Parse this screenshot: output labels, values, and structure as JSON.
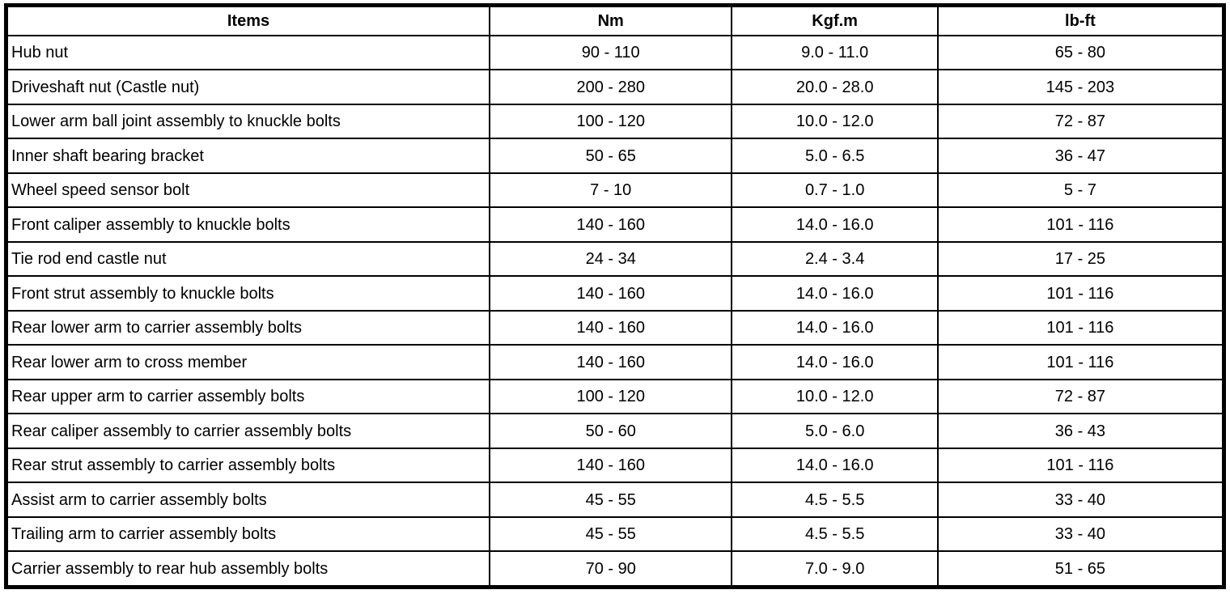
{
  "table": {
    "headers": [
      "Items",
      "Nm",
      "Kgf.m",
      "lb-ft"
    ],
    "rows": [
      [
        "Hub nut",
        "90 - 110",
        "9.0 - 11.0",
        "65 - 80"
      ],
      [
        "Driveshaft nut (Castle nut)",
        "200 - 280",
        "20.0 - 28.0",
        "145 - 203"
      ],
      [
        "Lower arm ball joint assembly to knuckle bolts",
        "100 - 120",
        "10.0 - 12.0",
        "72 - 87"
      ],
      [
        "Inner shaft bearing bracket",
        "50 - 65",
        "5.0 - 6.5",
        "36 - 47"
      ],
      [
        "Wheel speed sensor bolt",
        "7 - 10",
        "0.7 - 1.0",
        "5 - 7"
      ],
      [
        "Front caliper assembly to knuckle bolts",
        "140 - 160",
        "14.0 - 16.0",
        "101 - 116"
      ],
      [
        "Tie rod end castle nut",
        "24 - 34",
        "2.4 - 3.4",
        "17 - 25"
      ],
      [
        "Front strut assembly to knuckle bolts",
        "140 - 160",
        "14.0 - 16.0",
        "101 - 116"
      ],
      [
        "Rear lower arm to carrier assembly bolts",
        "140 - 160",
        "14.0 - 16.0",
        "101 - 116"
      ],
      [
        "Rear lower arm to cross member",
        "140 - 160",
        "14.0 - 16.0",
        "101 - 116"
      ],
      [
        "Rear upper arm to carrier assembly bolts",
        "100 - 120",
        "10.0 - 12.0",
        "72 - 87"
      ],
      [
        "Rear caliper assembly to carrier assembly bolts",
        "50 - 60",
        "5.0 - 6.0",
        "36 - 43"
      ],
      [
        "Rear strut assembly to carrier assembly bolts",
        "140 - 160",
        "14.0 - 16.0",
        "101 - 116"
      ],
      [
        "Assist arm to carrier assembly bolts",
        "45 - 55",
        "4.5 - 5.5",
        "33 - 40"
      ],
      [
        "Trailing arm to carrier assembly bolts",
        "45 - 55",
        "4.5 - 5.5",
        "33 - 40"
      ],
      [
        "Carrier assembly to rear hub assembly bolts",
        "70 - 90",
        "7.0 - 9.0",
        "51 - 65"
      ]
    ]
  }
}
